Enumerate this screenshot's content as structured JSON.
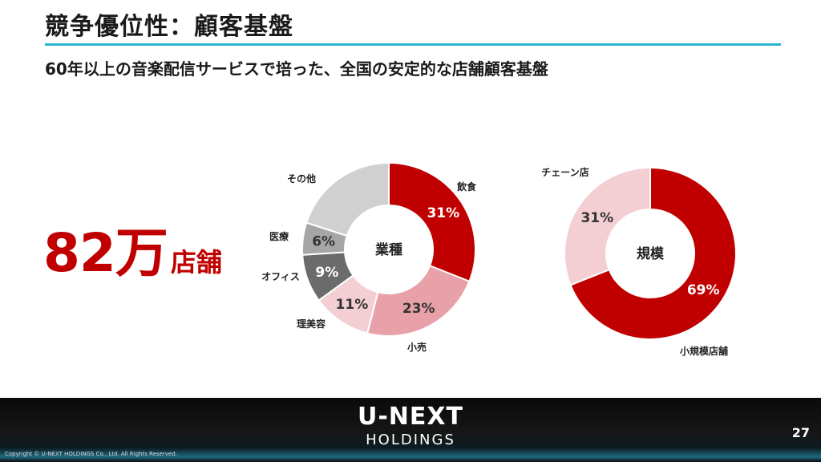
{
  "slide": {
    "title": "競争優位性：顧客基盤",
    "subtitle": "60年以上の音楽配信サービスで培った、全国の安定的な店舗顧客基盤",
    "headline_number": "82万",
    "headline_unit": "店舗",
    "page_number": "27",
    "copyright": "Copyright © U-NEXT HOLDINGS Co., Ltd. All Rights Reserved.",
    "logo_top": "U-NEXT",
    "logo_bottom": "HOLDINGS"
  },
  "chart_data": [
    {
      "type": "pie",
      "variant": "donut",
      "center_label": "業種",
      "slices": [
        {
          "label": "飲食",
          "value": 31,
          "value_label": "31%",
          "color": "#c00000",
          "text_color": "#ffffff"
        },
        {
          "label": "小売",
          "value": 23,
          "value_label": "23%",
          "color": "#e8a1a8",
          "text_color": "#333333"
        },
        {
          "label": "理美容",
          "value": 11,
          "value_label": "11%",
          "color": "#f3cfd3",
          "text_color": "#333333"
        },
        {
          "label": "オフィス",
          "value": 9,
          "value_label": "9%",
          "color": "#6b6b6b",
          "text_color": "#ffffff"
        },
        {
          "label": "医療",
          "value": 6,
          "value_label": "6%",
          "color": "#a6a6a6",
          "text_color": "#333333"
        },
        {
          "label": "その他",
          "value": 20,
          "value_label": "",
          "color": "#d0d0d0",
          "text_color": "#333333"
        }
      ]
    },
    {
      "type": "pie",
      "variant": "donut",
      "center_label": "規模",
      "slices": [
        {
          "label": "小規模店舗",
          "value": 69,
          "value_label": "69%",
          "color": "#c00000",
          "text_color": "#ffffff"
        },
        {
          "label": "チェーン店",
          "value": 31,
          "value_label": "31%",
          "color": "#f3cfd3",
          "text_color": "#333333"
        }
      ]
    }
  ]
}
